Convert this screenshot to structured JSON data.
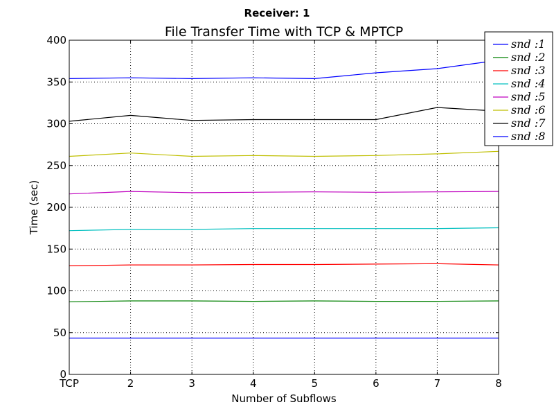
{
  "chart_data": {
    "type": "line",
    "suptitle": "Receiver: 1",
    "title": "File Transfer Time with TCP & MPTCP",
    "xlabel": "Number of Subflows",
    "ylabel": "Time (sec)",
    "categories": [
      "TCP",
      "2",
      "3",
      "4",
      "5",
      "6",
      "7",
      "8"
    ],
    "ylim": [
      0,
      400
    ],
    "yticks": [
      0,
      50,
      100,
      150,
      200,
      250,
      300,
      350,
      400
    ],
    "grid": true,
    "legend_position": "upper-right",
    "series": [
      {
        "name": "snd :1",
        "color": "#0000ff",
        "values": [
          354,
          355,
          354,
          355,
          354,
          361,
          366,
          376
        ]
      },
      {
        "name": "snd :2",
        "color": "#008000",
        "values": [
          87,
          88,
          88,
          87.5,
          88,
          87.5,
          87.5,
          88
        ]
      },
      {
        "name": "snd :3",
        "color": "#ff0000",
        "values": [
          130,
          131,
          131,
          131.5,
          131.5,
          132,
          132.5,
          131
        ]
      },
      {
        "name": "snd :4",
        "color": "#00bfbf",
        "values": [
          172,
          173.5,
          173.5,
          174.5,
          174.5,
          174.5,
          174.5,
          175.5
        ]
      },
      {
        "name": "snd :5",
        "color": "#bf00bf",
        "values": [
          216,
          219,
          217.5,
          218,
          218.5,
          218,
          218.5,
          219
        ]
      },
      {
        "name": "snd :6",
        "color": "#bfbf00",
        "values": [
          261,
          265,
          261,
          262,
          261,
          262,
          264,
          267
        ]
      },
      {
        "name": "snd :7",
        "color": "#000000",
        "values": [
          303,
          310,
          304,
          305,
          305,
          305,
          319.5,
          315
        ]
      },
      {
        "name": "snd :8",
        "color": "#0000ff",
        "values": [
          43.5,
          43.5,
          43.5,
          43.5,
          43.5,
          43.5,
          43.5,
          43.5
        ]
      }
    ]
  }
}
